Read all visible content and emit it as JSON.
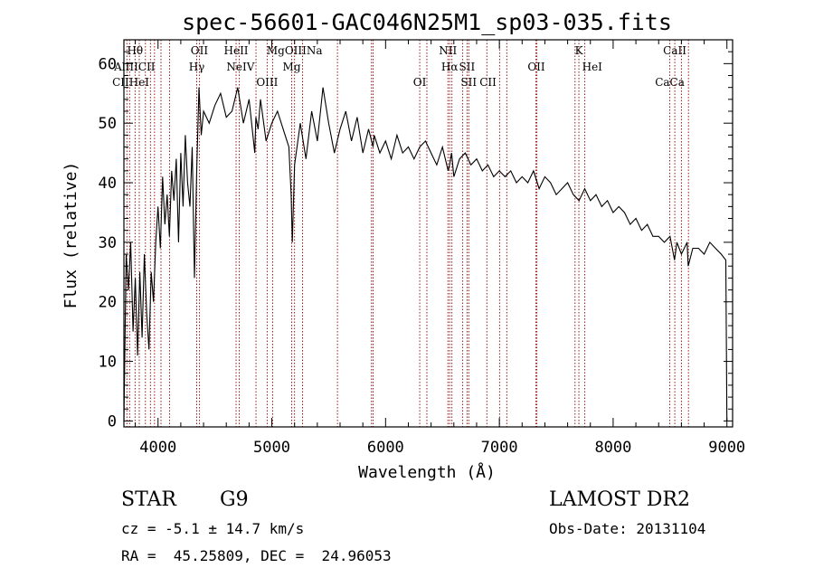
{
  "chart_data": {
    "type": "line",
    "title": "spec-56601-GAC046N25M1_sp03-035.fits",
    "xlabel": "Wavelength (Å)",
    "ylabel": "Flux (relative)",
    "xlim": [
      3700,
      9050
    ],
    "ylim": [
      -1,
      64
    ],
    "x_ticks": [
      4000,
      5000,
      6000,
      7000,
      8000,
      9000
    ],
    "y_ticks": [
      0,
      10,
      20,
      30,
      40,
      50,
      60
    ],
    "line_color": "#000000",
    "marker_color": "#8b0000",
    "grid": false,
    "legend": "none",
    "series": [
      {
        "x": [
          3700,
          3720,
          3740,
          3760,
          3780,
          3800,
          3820,
          3840,
          3860,
          3880,
          3900,
          3920,
          3940,
          3960,
          3980,
          4000,
          4020,
          4040,
          4060,
          4080,
          4100,
          4120,
          4140,
          4160,
          4180,
          4200,
          4220,
          4240,
          4260,
          4280,
          4300,
          4320,
          4340,
          4360,
          4380,
          4400,
          4450,
          4500,
          4550,
          4600,
          4650,
          4700,
          4750,
          4800,
          4850,
          4860,
          4880,
          4900,
          4950,
          5000,
          5050,
          5100,
          5150,
          5170,
          5180,
          5200,
          5250,
          5300,
          5350,
          5400,
          5450,
          5500,
          5550,
          5600,
          5650,
          5700,
          5750,
          5800,
          5850,
          5890,
          5900,
          5950,
          6000,
          6050,
          6100,
          6150,
          6200,
          6250,
          6300,
          6350,
          6400,
          6450,
          6500,
          6550,
          6563,
          6580,
          6600,
          6650,
          6700,
          6750,
          6800,
          6850,
          6900,
          6950,
          7000,
          7050,
          7100,
          7150,
          7200,
          7250,
          7300,
          7350,
          7400,
          7450,
          7500,
          7550,
          7600,
          7650,
          7700,
          7750,
          7800,
          7850,
          7900,
          7950,
          8000,
          8050,
          8100,
          8150,
          8200,
          8250,
          8300,
          8350,
          8400,
          8450,
          8500,
          8540,
          8560,
          8600,
          8650,
          8660,
          8700,
          8750,
          8800,
          8850,
          8900,
          8950,
          8990,
          9000
        ],
        "y": [
          0,
          28,
          22,
          30,
          15,
          24,
          11,
          25,
          14,
          28,
          18,
          12,
          25,
          20,
          30,
          36,
          29,
          41,
          33,
          38,
          31,
          42,
          37,
          44,
          30,
          45,
          36,
          48,
          40,
          36,
          46,
          24,
          42,
          56,
          48,
          52,
          50,
          53,
          55,
          51,
          52,
          56,
          50,
          54,
          45,
          51,
          49,
          54,
          47,
          50,
          52,
          49,
          46,
          38,
          30,
          43,
          50,
          44,
          52,
          47,
          56,
          50,
          45,
          49,
          52,
          47,
          51,
          45,
          49,
          46,
          48,
          45,
          47,
          44,
          48,
          45,
          46,
          44,
          46,
          47,
          45,
          43,
          46,
          42,
          43,
          45,
          41,
          44,
          45,
          43,
          44,
          42,
          43,
          41,
          42,
          41,
          42,
          40,
          41,
          40,
          42,
          39,
          41,
          40,
          38,
          39,
          40,
          38,
          37,
          39,
          37,
          38,
          36,
          37,
          35,
          36,
          35,
          33,
          34,
          32,
          33,
          31,
          31,
          30,
          31,
          27,
          30,
          28,
          30,
          26,
          29,
          29,
          28,
          30,
          29,
          28,
          27,
          0
        ],
        "note": ""
      }
    ],
    "lines_upper": [
      {
        "label": "Hθ",
        "x": 3798
      },
      {
        "label": "OII",
        "x": 4363
      },
      {
        "label": "HeII",
        "x": 4686
      },
      {
        "label": "MgOIIINa",
        "x": 5200
      },
      {
        "label": "NII",
        "x": 6548
      },
      {
        "label": "K",
        "x": 7699
      },
      {
        "label": "CaII",
        "x": 8542
      }
    ],
    "lines_mid": [
      {
        "label": "AlIII",
        "x": 3720
      },
      {
        "label": "CII",
        "x": 3900
      },
      {
        "label": "Hγ",
        "x": 4340
      },
      {
        "label": "NeIV",
        "x": 4725
      },
      {
        "label": "Mg",
        "x": 5175
      },
      {
        "label": "Hα",
        "x": 6563
      },
      {
        "label": "SII",
        "x": 6716
      },
      {
        "label": "OII",
        "x": 7325
      },
      {
        "label": "HeI",
        "x": 7816
      }
    ],
    "lines_low": [
      {
        "label": "CIIHeI",
        "x": 3760
      },
      {
        "label": "OIII",
        "x": 4959
      },
      {
        "label": "OI",
        "x": 6300
      },
      {
        "label": "SII",
        "x": 6731
      },
      {
        "label": "CII",
        "x": 6900
      },
      {
        "label": "CaCa",
        "x": 8498
      }
    ],
    "marker_x": [
      3726,
      3750,
      3798,
      3835,
      3889,
      3933,
      3969,
      4026,
      4101,
      4340,
      4363,
      4686,
      4713,
      4861,
      4959,
      5007,
      5175,
      5200,
      5270,
      5577,
      5876,
      5890,
      6300,
      6363,
      6548,
      6563,
      6583,
      6678,
      6716,
      6731,
      6890,
      7002,
      7065,
      7320,
      7330,
      7665,
      7699,
      7751,
      8498,
      8542,
      8600,
      8662
    ]
  },
  "info": {
    "class_label": "STAR",
    "subclass": "G9",
    "survey": "LAMOST DR2",
    "cz_line": "cz = -5.1 ± 14.7 km/s",
    "obs_date": "Obs-Date: 20131104",
    "coords": "RA =  45.25809, DEC =  24.96053"
  }
}
